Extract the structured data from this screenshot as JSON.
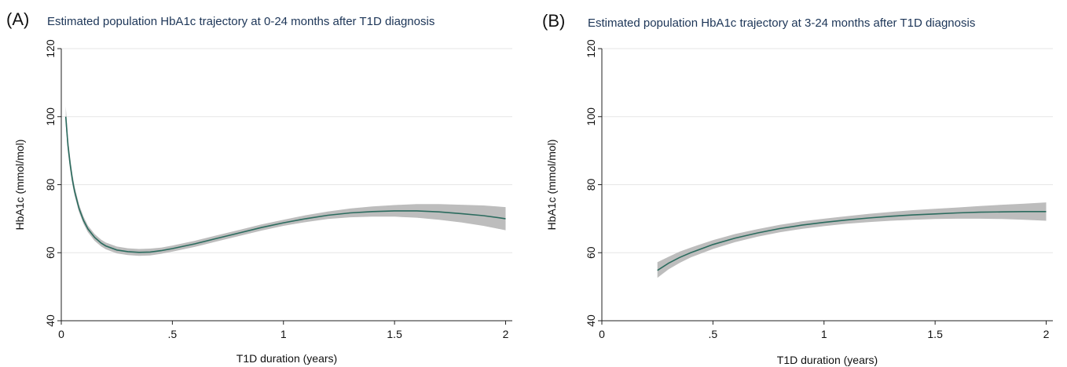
{
  "colors": {
    "line": "#2b6b5e",
    "band": "#bdbdbd",
    "title": "#1c3557"
  },
  "chart_data": [
    {
      "type": "line",
      "panel_label": "(A)",
      "title": "Estimated population HbA1c trajectory at 0-24 months after T1D diagnosis",
      "xlabel": "T1D duration (years)",
      "ylabel": "HbA1c (mmol/mol)",
      "xlim": [
        0,
        2.03
      ],
      "ylim": [
        40,
        120
      ],
      "xticks": [
        0,
        0.5,
        1,
        1.5,
        2
      ],
      "xtick_labels": [
        "0",
        ".5",
        "1",
        "1.5",
        "2"
      ],
      "yticks": [
        40,
        60,
        80,
        100,
        120
      ],
      "ytick_labels": [
        "40",
        "60",
        "80",
        "100",
        "120"
      ],
      "grid": true,
      "series": [
        {
          "x": [
            0.02,
            0.03,
            0.04,
            0.05,
            0.06,
            0.08,
            0.1,
            0.12,
            0.15,
            0.18,
            0.2,
            0.25,
            0.3,
            0.35,
            0.4,
            0.45,
            0.5,
            0.6,
            0.7,
            0.8,
            0.9,
            1.0,
            1.1,
            1.2,
            1.3,
            1.4,
            1.5,
            1.6,
            1.7,
            1.8,
            1.9,
            2.0
          ],
          "y": [
            100.0,
            91.5,
            86.0,
            81.5,
            78.0,
            73.0,
            69.5,
            67.0,
            64.5,
            62.8,
            62.0,
            60.8,
            60.3,
            60.1,
            60.2,
            60.6,
            61.2,
            62.6,
            64.2,
            65.8,
            67.4,
            68.8,
            70.0,
            71.0,
            71.7,
            72.1,
            72.3,
            72.3,
            72.0,
            71.5,
            70.9,
            70.0
          ],
          "lower": [
            97.5,
            89.5,
            84.2,
            80.0,
            76.7,
            71.9,
            68.5,
            66.0,
            63.5,
            61.8,
            61.0,
            59.8,
            59.3,
            59.1,
            59.2,
            59.7,
            60.3,
            61.7,
            63.3,
            64.9,
            66.5,
            67.9,
            69.0,
            69.9,
            70.4,
            70.6,
            70.6,
            70.3,
            69.7,
            68.9,
            67.9,
            66.6
          ],
          "upper": [
            103.0,
            93.8,
            88.0,
            83.2,
            79.4,
            74.2,
            70.6,
            68.0,
            65.5,
            63.8,
            63.0,
            61.8,
            61.3,
            61.1,
            61.2,
            61.5,
            62.1,
            63.5,
            65.1,
            66.7,
            68.3,
            69.7,
            71.0,
            72.1,
            73.0,
            73.6,
            74.0,
            74.3,
            74.3,
            74.1,
            73.9,
            73.4
          ]
        }
      ]
    },
    {
      "type": "line",
      "panel_label": "(B)",
      "title": "Estimated population HbA1c trajectory at 3-24 months after T1D diagnosis",
      "xlabel": "T1D duration (years)",
      "ylabel": "HbA1c (mmol/mol)",
      "xlim": [
        0,
        2.03
      ],
      "ylim": [
        40,
        120
      ],
      "xticks": [
        0,
        0.5,
        1,
        1.5,
        2
      ],
      "xtick_labels": [
        "0",
        ".5",
        "1",
        "1.5",
        "2"
      ],
      "yticks": [
        40,
        60,
        80,
        100,
        120
      ],
      "ytick_labels": [
        "40",
        "60",
        "80",
        "100",
        "120"
      ],
      "grid": true,
      "series": [
        {
          "x": [
            0.25,
            0.3,
            0.35,
            0.4,
            0.5,
            0.6,
            0.7,
            0.8,
            0.9,
            1.0,
            1.1,
            1.2,
            1.3,
            1.4,
            1.5,
            1.6,
            1.7,
            1.8,
            1.9,
            2.0
          ],
          "y": [
            54.8,
            56.9,
            58.6,
            60.0,
            62.4,
            64.3,
            65.8,
            67.1,
            68.1,
            68.9,
            69.6,
            70.2,
            70.7,
            71.1,
            71.4,
            71.7,
            71.9,
            72.0,
            72.1,
            72.1
          ],
          "lower": [
            52.6,
            55.1,
            57.0,
            58.6,
            61.1,
            63.1,
            64.7,
            66.0,
            67.0,
            67.8,
            68.5,
            69.0,
            69.4,
            69.7,
            69.9,
            70.0,
            70.0,
            69.9,
            69.7,
            69.4
          ],
          "upper": [
            57.2,
            58.8,
            60.3,
            61.5,
            63.7,
            65.5,
            66.9,
            68.2,
            69.2,
            70.0,
            70.7,
            71.4,
            72.0,
            72.5,
            72.9,
            73.3,
            73.7,
            74.1,
            74.4,
            74.8
          ]
        }
      ]
    }
  ]
}
